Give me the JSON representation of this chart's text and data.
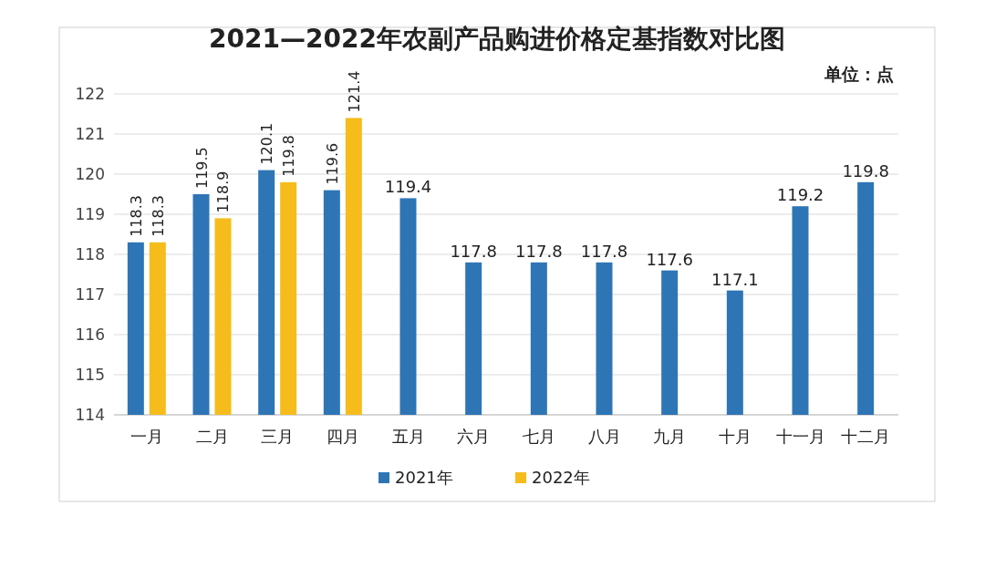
{
  "chart_data": {
    "type": "bar",
    "title": "2021—2022年农副产品购进价格定基指数对比图",
    "annotations": [
      "单位：点"
    ],
    "categories": [
      "一月",
      "二月",
      "三月",
      "四月",
      "五月",
      "六月",
      "七月",
      "八月",
      "九月",
      "十月",
      "十一月",
      "十二月"
    ],
    "series": [
      {
        "name": "2021年",
        "color": "#2e75b6",
        "values": [
          118.3,
          119.5,
          120.1,
          119.6,
          119.4,
          117.8,
          117.8,
          117.8,
          117.6,
          117.1,
          119.2,
          119.8
        ]
      },
      {
        "name": "2022年",
        "color": "#f5bc1c",
        "values": [
          118.3,
          118.9,
          119.8,
          121.4,
          null,
          null,
          null,
          null,
          null,
          null,
          null,
          null
        ]
      }
    ],
    "ylim": [
      114,
      122
    ],
    "yticks": [
      114,
      115,
      116,
      117,
      118,
      119,
      120,
      121,
      122
    ],
    "grid": "y",
    "legend": "bottom",
    "data_labels": true
  }
}
